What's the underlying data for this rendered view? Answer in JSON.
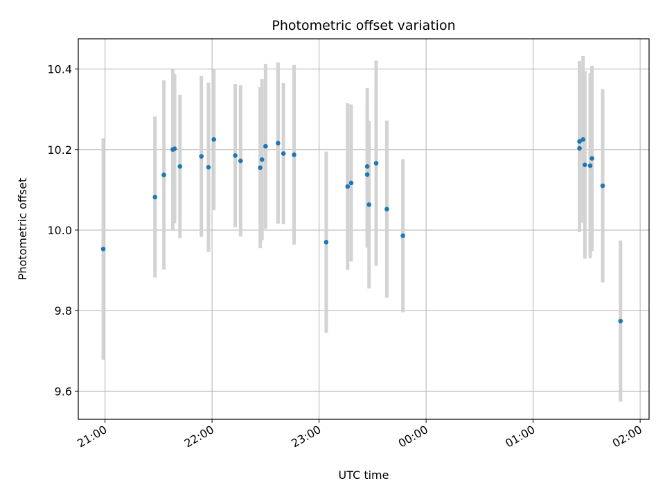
{
  "chart_data": {
    "type": "scatter",
    "title": "Photometric offset variation",
    "xlabel": "UTC time",
    "ylabel": "Photometric offset",
    "x_ticks": [
      "21:00",
      "22:00",
      "23:00",
      "00:00",
      "01:00",
      "02:00"
    ],
    "y_ticks": [
      "9.6",
      "9.8",
      "10.0",
      "10.2",
      "10.4"
    ],
    "xlim": [
      "20:45",
      "02:05"
    ],
    "ylim": [
      9.53,
      10.475
    ],
    "grid": true,
    "marker_color": "#1f77b4",
    "errorbar_color": "#d3d3d3",
    "points": [
      {
        "time": "20:59",
        "y": 9.953,
        "err": 0.275
      },
      {
        "time": "21:28",
        "y": 10.082,
        "err": 0.2
      },
      {
        "time": "21:33",
        "y": 10.137,
        "err": 0.235
      },
      {
        "time": "21:38",
        "y": 10.2,
        "err": 0.2
      },
      {
        "time": "21:39",
        "y": 10.202,
        "err": 0.185
      },
      {
        "time": "21:42",
        "y": 10.158,
        "err": 0.178
      },
      {
        "time": "21:54",
        "y": 10.183,
        "err": 0.2
      },
      {
        "time": "21:58",
        "y": 10.156,
        "err": 0.21
      },
      {
        "time": "22:01",
        "y": 10.225,
        "err": 0.175
      },
      {
        "time": "22:13",
        "y": 10.185,
        "err": 0.178
      },
      {
        "time": "22:16",
        "y": 10.172,
        "err": 0.188
      },
      {
        "time": "22:27",
        "y": 10.155,
        "err": 0.2
      },
      {
        "time": "22:28",
        "y": 10.175,
        "err": 0.2
      },
      {
        "time": "22:30",
        "y": 10.208,
        "err": 0.205
      },
      {
        "time": "22:37",
        "y": 10.216,
        "err": 0.2
      },
      {
        "time": "22:40",
        "y": 10.19,
        "err": 0.175
      },
      {
        "time": "22:46",
        "y": 10.187,
        "err": 0.223
      },
      {
        "time": "23:04",
        "y": 9.97,
        "err": 0.225
      },
      {
        "time": "23:16",
        "y": 10.108,
        "err": 0.207
      },
      {
        "time": "23:18",
        "y": 10.117,
        "err": 0.195
      },
      {
        "time": "23:27",
        "y": 10.138,
        "err": 0.182
      },
      {
        "time": "23:27",
        "y": 10.158,
        "err": 0.195
      },
      {
        "time": "23:28",
        "y": 10.063,
        "err": 0.208
      },
      {
        "time": "23:32",
        "y": 10.166,
        "err": 0.255
      },
      {
        "time": "23:38",
        "y": 10.052,
        "err": 0.22
      },
      {
        "time": "23:47",
        "y": 9.986,
        "err": 0.19
      },
      {
        "time": "01:26",
        "y": 10.203,
        "err": 0.208
      },
      {
        "time": "01:26",
        "y": 10.22,
        "err": 0.2
      },
      {
        "time": "01:28",
        "y": 10.225,
        "err": 0.207
      },
      {
        "time": "01:29",
        "y": 10.162,
        "err": 0.233
      },
      {
        "time": "01:32",
        "y": 10.16,
        "err": 0.23
      },
      {
        "time": "01:33",
        "y": 10.178,
        "err": 0.23
      },
      {
        "time": "01:39",
        "y": 10.11,
        "err": 0.24
      },
      {
        "time": "01:49",
        "y": 9.774,
        "err": 0.2
      }
    ]
  }
}
